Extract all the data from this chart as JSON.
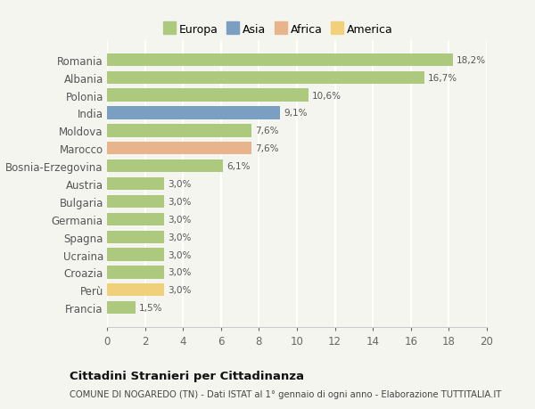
{
  "categories": [
    "Romania",
    "Albania",
    "Polonia",
    "India",
    "Moldova",
    "Marocco",
    "Bosnia-Erzegovina",
    "Austria",
    "Bulgaria",
    "Germania",
    "Spagna",
    "Ucraina",
    "Croazia",
    "Perù",
    "Francia"
  ],
  "values": [
    18.2,
    16.7,
    10.6,
    9.1,
    7.6,
    7.6,
    6.1,
    3.0,
    3.0,
    3.0,
    3.0,
    3.0,
    3.0,
    3.0,
    1.5
  ],
  "labels": [
    "18,2%",
    "16,7%",
    "10,6%",
    "9,1%",
    "7,6%",
    "7,6%",
    "6,1%",
    "3,0%",
    "3,0%",
    "3,0%",
    "3,0%",
    "3,0%",
    "3,0%",
    "3,0%",
    "1,5%"
  ],
  "continents": [
    "Europa",
    "Europa",
    "Europa",
    "Asia",
    "Europa",
    "Africa",
    "Europa",
    "Europa",
    "Europa",
    "Europa",
    "Europa",
    "Europa",
    "Europa",
    "America",
    "Europa"
  ],
  "colors": {
    "Europa": "#adc97e",
    "Asia": "#7b9fc2",
    "Africa": "#e8b48c",
    "America": "#f0d07a"
  },
  "legend_order": [
    "Europa",
    "Asia",
    "Africa",
    "America"
  ],
  "legend_colors": [
    "#adc97e",
    "#7b9fc2",
    "#e8b48c",
    "#f0d07a"
  ],
  "xlim": [
    0,
    20
  ],
  "xticks": [
    0,
    2,
    4,
    6,
    8,
    10,
    12,
    14,
    16,
    18,
    20
  ],
  "title": "Cittadini Stranieri per Cittadinanza",
  "subtitle": "COMUNE DI NOGAREDO (TN) - Dati ISTAT al 1° gennaio di ogni anno - Elaborazione TUTTITALIA.IT",
  "bg_color": "#f5f5f0",
  "grid_color": "#ffffff",
  "bar_height": 0.72
}
